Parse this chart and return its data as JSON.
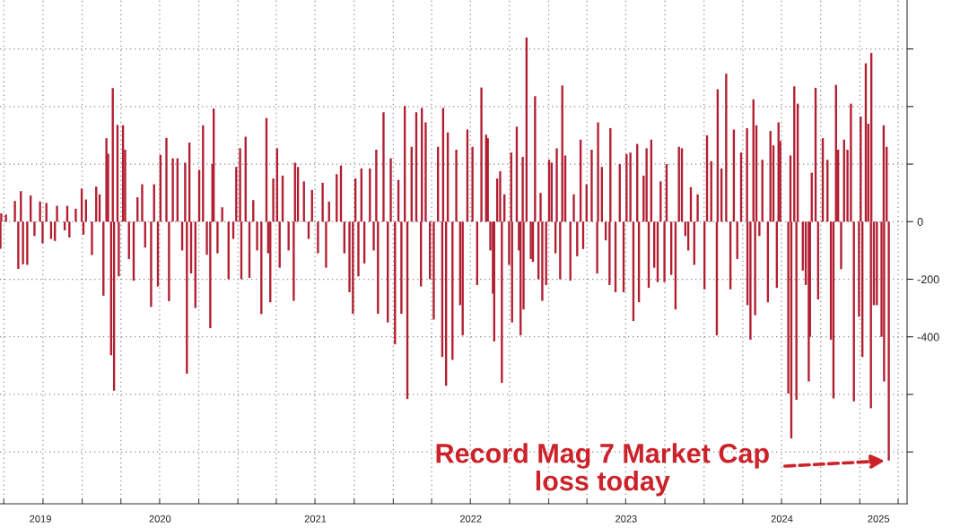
{
  "chart_data": {
    "type": "bar",
    "color": "#b21f32",
    "x": [
      "2019-06-23",
      "2019-06-25",
      "2019-07-06",
      "2019-07-27",
      "2019-08-04",
      "2019-08-10",
      "2019-08-15",
      "2019-08-25",
      "2019-09-02",
      "2019-09-11",
      "2019-09-24",
      "2019-09-30",
      "2019-10-09",
      "2019-10-20",
      "2019-10-29",
      "2019-11-03",
      "2019-11-21",
      "2019-11-27",
      "2019-12-02",
      "2019-12-17",
      "2019-12-31",
      "2020-01-04",
      "2020-01-10",
      "2020-01-24",
      "2020-02-03",
      "2020-02-11",
      "2020-02-20",
      "2020-02-27",
      "2020-03-02",
      "2020-03-09",
      "2020-03-13",
      "2020-03-16",
      "2020-03-24",
      "2020-03-27",
      "2020-04-06",
      "2020-04-11",
      "2020-04-20",
      "2020-05-01",
      "2020-05-10",
      "2020-05-21",
      "2020-05-28",
      "2020-06-11",
      "2020-06-18",
      "2020-06-27",
      "2020-07-03",
      "2020-07-17",
      "2020-07-23",
      "2020-08-01",
      "2020-08-12",
      "2020-08-23",
      "2020-08-30",
      "2020-09-03",
      "2020-09-09",
      "2020-09-13",
      "2020-09-23",
      "2020-10-02",
      "2020-10-11",
      "2020-10-20",
      "2020-10-28",
      "2020-11-02",
      "2020-11-05",
      "2020-11-14",
      "2020-11-25",
      "2020-12-10",
      "2020-12-21",
      "2020-12-28",
      "2021-01-06",
      "2021-01-09",
      "2021-01-19",
      "2021-01-28",
      "2021-02-06",
      "2021-02-15",
      "2021-02-25",
      "2021-03-09",
      "2021-03-13",
      "2021-03-18",
      "2021-03-25",
      "2021-04-03",
      "2021-04-09",
      "2021-04-16",
      "2021-04-30",
      "2021-05-12",
      "2021-05-15",
      "2021-05-22",
      "2021-06-05",
      "2021-06-16",
      "2021-06-24",
      "2021-07-08",
      "2021-07-19",
      "2021-07-27",
      "2021-08-03",
      "2021-08-21",
      "2021-08-31",
      "2021-09-08",
      "2021-09-20",
      "2021-09-28",
      "2021-10-04",
      "2021-10-11",
      "2021-10-18",
      "2021-10-25",
      "2021-11-07",
      "2021-11-16",
      "2021-11-22",
      "2021-11-26",
      "2021-12-09",
      "2021-12-19",
      "2021-12-26",
      "2022-01-05",
      "2022-01-13",
      "2022-01-20",
      "2022-01-28",
      "2022-02-03",
      "2022-02-13",
      "2022-02-24",
      "2022-03-07",
      "2022-03-09",
      "2022-03-18",
      "2022-03-28",
      "2022-04-06",
      "2022-04-16",
      "2022-04-26",
      "2022-04-28",
      "2022-05-05",
      "2022-05-09",
      "2022-05-20",
      "2022-05-29",
      "2022-06-07",
      "2022-06-13",
      "2022-06-24",
      "2022-07-06",
      "2022-07-17",
      "2022-07-27",
      "2022-08-07",
      "2022-08-11",
      "2022-08-17",
      "2022-08-23",
      "2022-08-26",
      "2022-09-02",
      "2022-09-09",
      "2022-09-13",
      "2022-09-19",
      "2022-09-30",
      "2022-10-05",
      "2022-10-07",
      "2022-10-18",
      "2022-10-23",
      "2022-10-27",
      "2022-11-01",
      "2022-11-03",
      "2022-11-10",
      "2022-11-20",
      "2022-11-25",
      "2022-11-30",
      "2022-12-08",
      "2022-12-13",
      "2022-12-17",
      "2022-12-26",
      "2023-01-02",
      "2023-01-08",
      "2023-01-17",
      "2023-01-20",
      "2023-01-28",
      "2023-02-02",
      "2023-02-09",
      "2023-02-21",
      "2023-03-01",
      "2023-03-09",
      "2023-03-17",
      "2023-03-23",
      "2023-03-31",
      "2023-04-12",
      "2023-04-25",
      "2023-04-27",
      "2023-05-06",
      "2023-05-15",
      "2023-05-24",
      "2023-05-26",
      "2023-06-07",
      "2023-06-17",
      "2023-06-26",
      "2023-07-03",
      "2023-07-12",
      "2023-07-19",
      "2023-07-28",
      "2023-08-01",
      "2023-08-12",
      "2023-08-19",
      "2023-08-24",
      "2023-08-30",
      "2023-09-06",
      "2023-09-14",
      "2023-09-21",
      "2023-09-30",
      "2023-10-05",
      "2023-10-16",
      "2023-10-26",
      "2023-11-03",
      "2023-11-10",
      "2023-11-18",
      "2023-11-25",
      "2023-12-01",
      "2023-12-09",
      "2023-12-17",
      "2024-01-02",
      "2024-01-08",
      "2024-01-18",
      "2024-01-31",
      "2024-02-02",
      "2024-02-11",
      "2024-02-22",
      "2024-03-03",
      "2024-03-11",
      "2024-03-19",
      "2024-03-28",
      "2024-04-11",
      "2024-04-12",
      "2024-04-19",
      "2024-04-26",
      "2024-04-30",
      "2024-05-03",
      "2024-05-10",
      "2024-05-17",
      "2024-05-30",
      "2024-06-05",
      "2024-06-12",
      "2024-06-20",
      "2024-06-24",
      "2024-06-28",
      "2024-07-17",
      "2024-07-22",
      "2024-07-24",
      "2024-07-31",
      "2024-08-05",
      "2024-08-08",
      "2024-08-20",
      "2024-08-27",
      "2024-09-03",
      "2024-09-06",
      "2024-09-10",
      "2024-09-19",
      "2024-09-25",
      "2024-10-06",
      "2024-10-17",
      "2024-10-25",
      "2024-10-31",
      "2024-11-06",
      "2024-11-11",
      "2024-11-18",
      "2024-11-25",
      "2024-12-03",
      "2024-12-11",
      "2024-12-18",
      "2024-12-30",
      "2025-01-03",
      "2025-01-07",
      "2025-01-15",
      "2025-01-21",
      "2025-01-27",
      "2025-01-28",
      "2025-02-03",
      "2025-02-10",
      "2025-02-21",
      "2025-02-26",
      "2025-02-27",
      "2025-03-05",
      "2025-03-10"
    ],
    "values": [
      -94,
      29,
      25,
      72,
      -164,
      106,
      -148,
      -150,
      91,
      -50,
      70,
      -75,
      65,
      -60,
      -67,
      55,
      -30,
      55,
      -55,
      45,
      115,
      -45,
      77,
      -116,
      122,
      95,
      -257,
      290,
      236,
      -464,
      464,
      -587,
      336,
      -190,
      335,
      250,
      -130,
      -205,
      85,
      130,
      -90,
      -296,
      130,
      -225,
      232,
      291,
      -276,
      220,
      220,
      -100,
      205,
      -528,
      275,
      -180,
      -300,
      180,
      335,
      -115,
      -370,
      200,
      393,
      -110,
      50,
      -200,
      -60,
      190,
      255,
      -200,
      295,
      -195,
      75,
      -100,
      -321,
      360,
      -110,
      -280,
      150,
      255,
      -160,
      160,
      -100,
      -275,
      205,
      190,
      140,
      -60,
      110,
      -110,
      135,
      -160,
      70,
      165,
      195,
      -110,
      -245,
      -320,
      150,
      -190,
      185,
      -145,
      185,
      -100,
      250,
      -320,
      380,
      -350,
      220,
      -426,
      145,
      -320,
      402,
      -616,
      260,
      380,
      -225,
      395,
      345,
      -200,
      -340,
      260,
      -470,
      395,
      -570,
      310,
      -480,
      250,
      -290,
      -395,
      320,
      260,
      -220,
      466,
      302,
      290,
      -100,
      -250,
      -416,
      150,
      175,
      -560,
      95,
      -150,
      240,
      -350,
      330,
      -100,
      -395,
      225,
      -305,
      640,
      -130,
      -140,
      436,
      -200,
      100,
      -275,
      -220,
      215,
      205,
      -110,
      255,
      -200,
      473,
      230,
      -205,
      95,
      -120,
      285,
      -95,
      130,
      250,
      -180,
      345,
      190,
      -65,
      -220,
      325,
      -245,
      200,
      -245,
      235,
      240,
      -345,
      270,
      -280,
      160,
      255,
      -230,
      285,
      -160,
      -210,
      140,
      -210,
      200,
      -185,
      -305,
      260,
      255,
      -50,
      -100,
      120,
      -150,
      95,
      -235,
      300,
      210,
      -395,
      460,
      185,
      514,
      -235,
      320,
      -130,
      240,
      325,
      -290,
      -410,
      425,
      -325,
      335,
      -50,
      215,
      -280,
      315,
      265,
      -230,
      345,
      280,
      -597,
      230,
      -753,
      470,
      -619,
      410,
      -170,
      -220,
      -555,
      -400,
      170,
      465,
      -270,
      290,
      215,
      -410,
      -614,
      475,
      250,
      -165,
      285,
      250,
      410,
      -624,
      -330,
      365,
      -470,
      550,
      340,
      -648,
      586,
      -290,
      -290,
      -400,
      335,
      -555,
      260,
      -830
    ],
    "xlim": [
      "2019-06-22",
      "2025-04-22"
    ],
    "xticks": [
      {
        "value": "2019-07-01",
        "label": null
      },
      {
        "value": "2019-10-01",
        "label": null
      },
      {
        "value": "2020-01-01",
        "label": null
      },
      {
        "value": "2020-04-01",
        "label": null
      },
      {
        "value": "2020-07-01",
        "label": null
      },
      {
        "value": "2020-10-01",
        "label": null
      },
      {
        "value": "2021-01-01",
        "label": null
      },
      {
        "value": "2021-04-01",
        "label": null
      },
      {
        "value": "2021-07-01",
        "label": null
      },
      {
        "value": "2021-10-01",
        "label": null
      },
      {
        "value": "2022-01-01",
        "label": null
      },
      {
        "value": "2022-04-01",
        "label": null
      },
      {
        "value": "2022-07-01",
        "label": null
      },
      {
        "value": "2022-10-01",
        "label": null
      },
      {
        "value": "2023-01-01",
        "label": null
      },
      {
        "value": "2023-04-01",
        "label": null
      },
      {
        "value": "2023-07-01",
        "label": null
      },
      {
        "value": "2023-10-01",
        "label": null
      },
      {
        "value": "2024-01-01",
        "label": null
      },
      {
        "value": "2024-04-01",
        "label": null
      },
      {
        "value": "2024-07-01",
        "label": null
      },
      {
        "value": "2024-10-01",
        "label": null
      },
      {
        "value": "2025-01-01",
        "label": null
      },
      {
        "value": "2025-04-01",
        "label": null
      },
      {
        "value": "2019-09-25",
        "label": "2019"
      },
      {
        "value": "2020-07-02",
        "label": "2020"
      },
      {
        "value": "2021-07-02",
        "label": "2021"
      },
      {
        "value": "2022-07-02",
        "label": "2022"
      },
      {
        "value": "2023-07-02",
        "label": "2023"
      },
      {
        "value": "2024-07-02",
        "label": "2024"
      },
      {
        "value": "2025-02-14",
        "label": "2025"
      }
    ],
    "ylim": [
      -980,
      770
    ],
    "yticks": [
      {
        "value": 600,
        "label": null
      },
      {
        "value": 400,
        "label": null
      },
      {
        "value": 200,
        "label": null
      },
      0,
      -200,
      -400,
      {
        "value": -600,
        "label": null
      },
      {
        "value": -800,
        "label": null
      }
    ],
    "grid": true,
    "annotations": [
      {
        "text": "Record Mag 7 Market Cap\nloss today",
        "x": "2025-03-10",
        "y": -830
      }
    ]
  }
}
